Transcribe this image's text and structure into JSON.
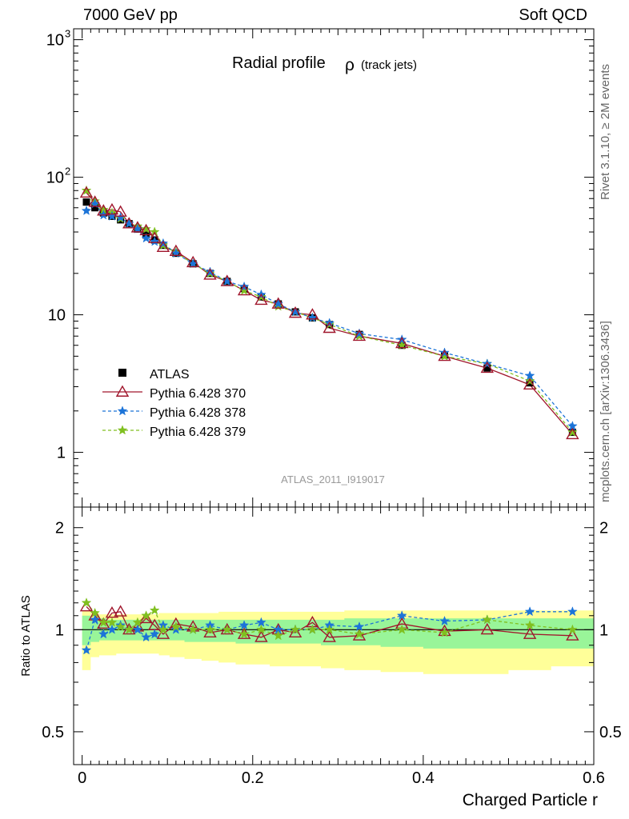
{
  "header": {
    "left": "7000 GeV pp",
    "right": "Soft QCD"
  },
  "side": {
    "rivet": "Rivet 3.1.10, ≥ 2M events",
    "mcplots": "mcplots.cern.ch [arXiv:1306.3436]"
  },
  "chart_data": {
    "type": "scatter",
    "title": "Radial profile",
    "title_symbol": "ρ",
    "title_suffix": "(track jets)",
    "analysis_label": "ATLAS_2011_I919017",
    "xlabel": "Charged Particle r",
    "ratio_ylabel": "Ratio to ATLAS",
    "xlim": [
      -0.01,
      0.6
    ],
    "ylim": [
      0.4,
      1200
    ],
    "ylog": true,
    "ratio_ylim": [
      0.4,
      2.3
    ],
    "x_ticks": [
      "0",
      "0.2",
      "0.4",
      "0.6"
    ],
    "y_ticks": [
      "1",
      "10",
      "10^2",
      "10^3"
    ],
    "ratio_ticks": [
      "0.5",
      "1",
      "2"
    ],
    "legend_position": "middle-left",
    "x": [
      0.005,
      0.015,
      0.025,
      0.035,
      0.045,
      0.055,
      0.065,
      0.075,
      0.085,
      0.095,
      0.11,
      0.13,
      0.15,
      0.17,
      0.19,
      0.21,
      0.23,
      0.25,
      0.27,
      0.29,
      0.325,
      0.375,
      0.425,
      0.475,
      0.525,
      0.575
    ],
    "series": [
      {
        "name": "ATLAS",
        "color": "#000000",
        "values": [
          66,
          60,
          55,
          52,
          49,
          46,
          42,
          38,
          35,
          32,
          28,
          23.5,
          20,
          17.5,
          15.5,
          13.5,
          12,
          10.5,
          9.5,
          8.5,
          7.2,
          6,
          5.1,
          4.1,
          3.2,
          1.4
        ]
      },
      {
        "name": "Pythia 6.428 370",
        "color": "#a0162c",
        "values": [
          77,
          66,
          57,
          58,
          56,
          46,
          43,
          41,
          36,
          31,
          29,
          24,
          19.5,
          17.5,
          15,
          12.8,
          12,
          10.3,
          10,
          8,
          7,
          6.2,
          5,
          4.1,
          3.1,
          1.35
        ]
      },
      {
        "name": "Pythia 6.428 378",
        "color": "#1c74d8",
        "values": [
          57,
          64,
          53,
          52,
          51,
          46,
          42,
          36,
          34,
          33,
          28,
          23.5,
          20.5,
          17.5,
          16,
          14,
          12,
          10.5,
          9.5,
          8.7,
          7.3,
          6.6,
          5.3,
          4.4,
          3.6,
          1.55
        ]
      },
      {
        "name": "Pythia 6.428 379",
        "color": "#80c020",
        "values": [
          80,
          67,
          58,
          55,
          50,
          46,
          44,
          42,
          40,
          32,
          28.5,
          23.5,
          20,
          17.5,
          15,
          13.5,
          11.5,
          10.5,
          9.5,
          8.5,
          7,
          6,
          5,
          4.4,
          3.3,
          1.4
        ]
      }
    ],
    "ratio_series": [
      {
        "name": "Pythia 6.428 370",
        "values": [
          1.17,
          1.1,
          1.04,
          1.12,
          1.13,
          1.0,
          1.02,
          1.08,
          1.03,
          0.97,
          1.04,
          1.02,
          0.98,
          1.0,
          0.97,
          0.95,
          1.0,
          0.98,
          1.05,
          0.95,
          0.96,
          1.04,
          0.99,
          1.0,
          0.97,
          0.96
        ]
      },
      {
        "name": "Pythia 6.428 378",
        "values": [
          0.87,
          1.07,
          0.97,
          1.0,
          1.03,
          1.0,
          1.0,
          0.95,
          0.97,
          1.03,
          1.0,
          1.0,
          1.03,
          1.0,
          1.03,
          1.05,
          1.0,
          1.0,
          1.0,
          1.03,
          1.02,
          1.1,
          1.06,
          1.07,
          1.13,
          1.13
        ]
      },
      {
        "name": "Pythia 6.428 379",
        "values": [
          1.2,
          1.12,
          1.05,
          1.05,
          1.02,
          1.0,
          1.05,
          1.1,
          1.14,
          1.0,
          1.02,
          1.0,
          1.0,
          1.0,
          0.97,
          1.0,
          0.96,
          1.0,
          1.0,
          1.0,
          0.97,
          1.0,
          0.98,
          1.07,
          1.03,
          1.0
        ]
      }
    ],
    "ratio_band_inner": [
      [
        0.9,
        1.1
      ],
      [
        0.92,
        1.08
      ],
      [
        0.93,
        1.08
      ],
      [
        0.93,
        1.07
      ],
      [
        0.93,
        1.07
      ],
      [
        0.93,
        1.07
      ],
      [
        0.93,
        1.07
      ],
      [
        0.93,
        1.07
      ],
      [
        0.93,
        1.07
      ],
      [
        0.93,
        1.07
      ],
      [
        0.93,
        1.07
      ],
      [
        0.92,
        1.07
      ],
      [
        0.92,
        1.07
      ],
      [
        0.92,
        1.07
      ],
      [
        0.91,
        1.07
      ],
      [
        0.91,
        1.07
      ],
      [
        0.91,
        1.07
      ],
      [
        0.91,
        1.07
      ],
      [
        0.91,
        1.07
      ],
      [
        0.9,
        1.07
      ],
      [
        0.9,
        1.08
      ],
      [
        0.89,
        1.08
      ],
      [
        0.88,
        1.08
      ],
      [
        0.88,
        1.08
      ],
      [
        0.88,
        1.08
      ],
      [
        0.88,
        1.08
      ]
    ],
    "ratio_band_outer": [
      [
        0.76,
        1.14
      ],
      [
        0.83,
        1.12
      ],
      [
        0.84,
        1.11
      ],
      [
        0.84,
        1.11
      ],
      [
        0.85,
        1.11
      ],
      [
        0.85,
        1.11
      ],
      [
        0.85,
        1.11
      ],
      [
        0.85,
        1.11
      ],
      [
        0.85,
        1.11
      ],
      [
        0.84,
        1.12
      ],
      [
        0.83,
        1.12
      ],
      [
        0.82,
        1.12
      ],
      [
        0.81,
        1.12
      ],
      [
        0.8,
        1.13
      ],
      [
        0.79,
        1.13
      ],
      [
        0.79,
        1.13
      ],
      [
        0.78,
        1.13
      ],
      [
        0.78,
        1.13
      ],
      [
        0.78,
        1.13
      ],
      [
        0.77,
        1.13
      ],
      [
        0.76,
        1.14
      ],
      [
        0.75,
        1.14
      ],
      [
        0.74,
        1.14
      ],
      [
        0.74,
        1.14
      ],
      [
        0.76,
        1.14
      ],
      [
        0.78,
        1.14
      ]
    ]
  }
}
